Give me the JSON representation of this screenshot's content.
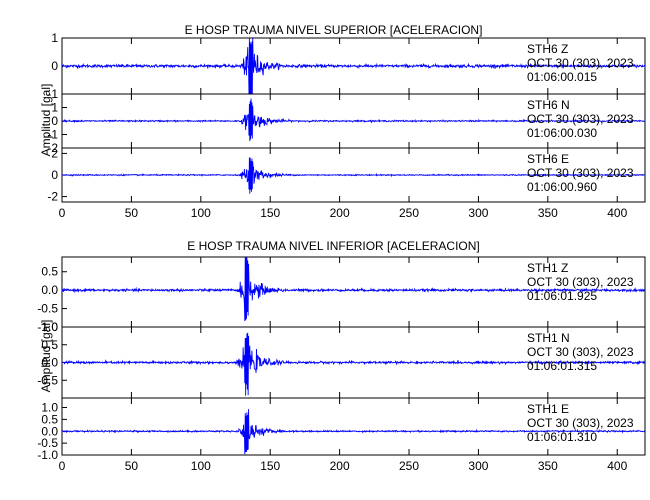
{
  "chart_data": [
    {
      "type": "line",
      "title": "E HOSP TRAUMA NIVEL SUPERIOR [ACELERACION]",
      "ylabel": "Amplitud [gal]",
      "xlim": [
        0,
        420
      ],
      "x_ticks": [
        "0",
        "50",
        "100",
        "150",
        "200",
        "250",
        "300",
        "350",
        "400"
      ],
      "series": [
        {
          "station": "STH6",
          "component": "Z",
          "date": "OCT 30 (303), 2023",
          "time": "01:06:00.015",
          "ylim": [
            -1,
            1
          ],
          "y_ticks": [
            "1",
            "0",
            "-1"
          ],
          "noise": 0.05,
          "event_start": 128,
          "event_peak": 136,
          "event_end": 160,
          "peak_amplitude": 1.2
        },
        {
          "station": "STH6",
          "component": "N",
          "date": "OCT 30 (303), 2023",
          "time": "01:06:00.030",
          "ylim": [
            -2,
            2
          ],
          "y_ticks": [
            "1",
            "0",
            "-1",
            "-2"
          ],
          "noise": 0.05,
          "event_start": 128,
          "event_peak": 136,
          "event_end": 165,
          "peak_amplitude": 1.7
        },
        {
          "station": "STH6",
          "component": "E",
          "date": "OCT 30 (303), 2023",
          "time": "01:06:00.960",
          "ylim": [
            -2.5,
            2.5
          ],
          "y_ticks": [
            "2",
            "0",
            "-2"
          ],
          "noise": 0.05,
          "event_start": 127,
          "event_peak": 136,
          "event_end": 165,
          "peak_amplitude": 1.8
        }
      ]
    },
    {
      "type": "line",
      "title": "E HOSP TRAUMA NIVEL INFERIOR [ACELERACION]",
      "ylabel": "Amplitud [gal]",
      "xlim": [
        0,
        420
      ],
      "x_ticks": [
        "0",
        "50",
        "100",
        "150",
        "200",
        "250",
        "300",
        "350",
        "400"
      ],
      "series": [
        {
          "station": "STH1",
          "component": "Z",
          "date": "OCT 30 (303), 2023",
          "time": "01:06:01.925",
          "ylim": [
            -1.0,
            0.9
          ],
          "y_ticks": [
            "0.5",
            "0.0",
            "-0.5",
            "-1.0"
          ],
          "noise": 0.03,
          "event_start": 126,
          "event_peak": 133,
          "event_end": 160,
          "peak_amplitude": 0.95
        },
        {
          "station": "STH1",
          "component": "N",
          "date": "OCT 30 (303), 2023",
          "time": "01:06:01.315",
          "ylim": [
            -1.0,
            1.0
          ],
          "y_ticks": [
            "1.0",
            "0.5",
            "0.0",
            "-0.5"
          ],
          "noise": 0.03,
          "event_start": 126,
          "event_peak": 133,
          "event_end": 160,
          "peak_amplitude": 0.95
        },
        {
          "station": "STH1",
          "component": "E",
          "date": "OCT 30 (303), 2023",
          "time": "01:06:01.310",
          "ylim": [
            -1.0,
            1.4
          ],
          "y_ticks": [
            "1.0",
            "0.5",
            "0.0",
            "-0.5",
            "-1.0"
          ],
          "noise": 0.03,
          "event_start": 126,
          "event_peak": 133,
          "event_end": 160,
          "peak_amplitude": 1.0
        }
      ]
    }
  ]
}
